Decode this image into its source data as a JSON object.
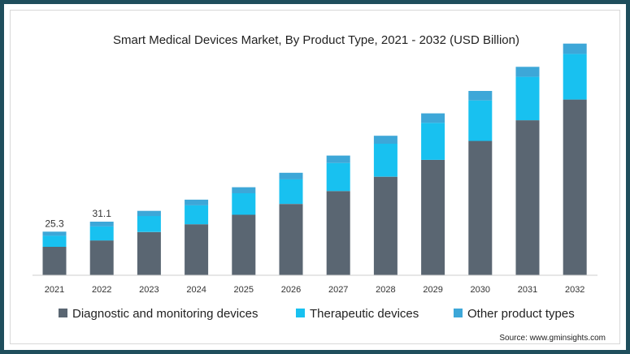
{
  "chart_data": {
    "type": "bar",
    "stacked": true,
    "title": "Smart Medical Devices Market, By Product Type, 2021 - 2032 (USD Billion)",
    "xlabel": "",
    "ylabel": "",
    "categories": [
      "2021",
      "2022",
      "2023",
      "2024",
      "2025",
      "2026",
      "2027",
      "2028",
      "2029",
      "2030",
      "2031",
      "2032"
    ],
    "series": [
      {
        "name": "Diagnostic and monitoring devices",
        "color": "#5a6672",
        "values": [
          16.5,
          20.2,
          25.1,
          29.6,
          35.1,
          41.4,
          48.9,
          57.2,
          67.0,
          78.0,
          90.0,
          102.0
        ]
      },
      {
        "name": "Therapeutic devices",
        "color": "#18c1f0",
        "values": [
          6.4,
          8.1,
          9.3,
          11.0,
          12.5,
          14.3,
          16.3,
          19.2,
          21.5,
          23.5,
          25.2,
          26.5
        ]
      },
      {
        "name": "Other product types",
        "color": "#3da7d8",
        "values": [
          2.4,
          2.8,
          3.0,
          3.3,
          3.5,
          3.8,
          4.3,
          4.6,
          5.5,
          5.5,
          5.8,
          6.0
        ]
      }
    ],
    "data_labels": [
      {
        "category": "2021",
        "text": "25.3"
      },
      {
        "category": "2022",
        "text": "31.1"
      }
    ],
    "ylim": [
      0,
      140
    ],
    "grid": false,
    "legend_position": "bottom"
  },
  "source": "Source: www.gminsights.com"
}
